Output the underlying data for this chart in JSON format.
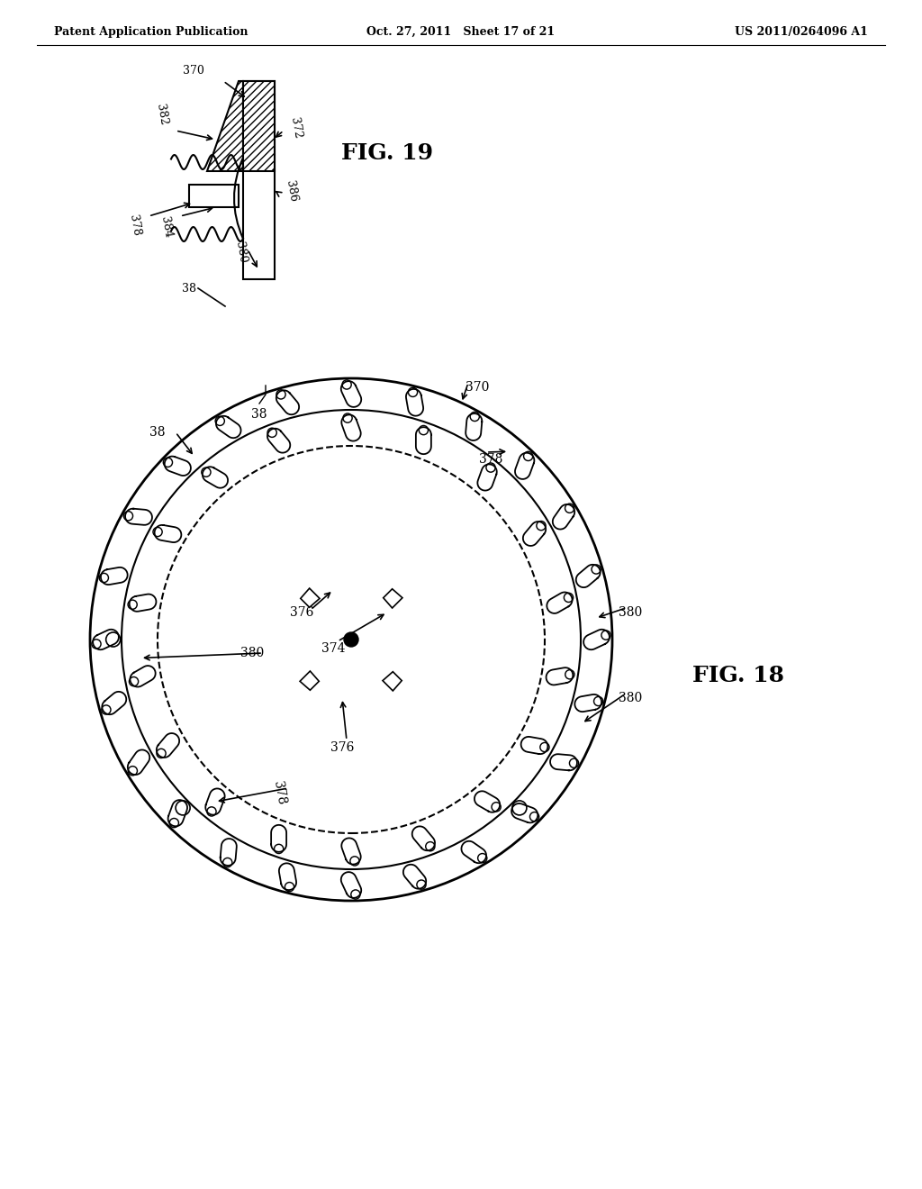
{
  "header_left": "Patent Application Publication",
  "header_center": "Oct. 27, 2011   Sheet 17 of 21",
  "header_right": "US 2011/0264096 A1",
  "fig18_label": "FIG. 18",
  "fig19_label": "FIG. 19",
  "label_38a": "38",
  "label_38b": "38",
  "label_370a": "370",
  "label_370b": "370",
  "label_372": "372",
  "label_374": "374",
  "label_376a": "376",
  "label_376b": "376",
  "label_378a": "378",
  "label_378b": "378",
  "label_380a": "380",
  "label_380b": "380",
  "label_380c": "380",
  "label_382": "382",
  "label_384": "384",
  "label_386": "386",
  "bg_color": "#ffffff",
  "line_color": "#000000"
}
